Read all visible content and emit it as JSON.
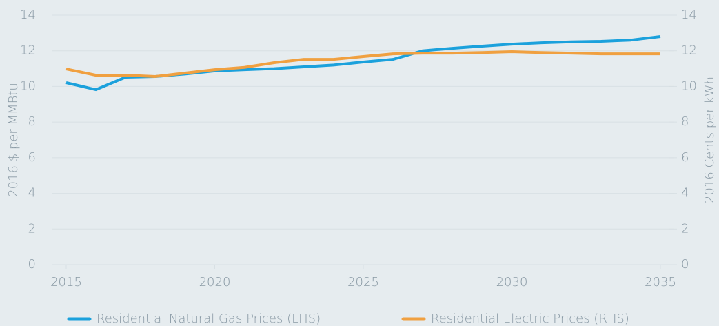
{
  "chart_data": {
    "type": "line",
    "y_label": "2016 $ per MMBtu",
    "y2_label": "2016 Cents per kWh",
    "x": [
      2015,
      2016,
      2017,
      2018,
      2019,
      2020,
      2021,
      2022,
      2023,
      2024,
      2025,
      2026,
      2027,
      2028,
      2029,
      2030,
      2031,
      2032,
      2033,
      2034,
      2035
    ],
    "xlim": [
      2015,
      2035
    ],
    "xticks": [
      2015,
      2020,
      2025,
      2030,
      2035
    ],
    "ylim": [
      0,
      14
    ],
    "yticks": [
      0,
      2,
      4,
      6,
      8,
      10,
      12,
      14
    ],
    "y2lim": [
      0,
      14
    ],
    "y2ticks": [
      0,
      2,
      4,
      6,
      8,
      10,
      12,
      14
    ],
    "grid": true,
    "legend": "bottom",
    "series": [
      {
        "name": "Residential Natural Gas Prices (LHS)",
        "color": "#1ba1dc",
        "values": [
          10.21,
          9.82,
          10.52,
          10.56,
          10.7,
          10.87,
          10.94,
          11.0,
          11.1,
          11.2,
          11.37,
          11.52,
          12.0,
          12.14,
          12.26,
          12.37,
          12.45,
          12.5,
          12.53,
          12.6,
          12.8
        ]
      },
      {
        "name": "Residential Electric Prices (RHS)",
        "color": "#f0a040",
        "axis": "y2",
        "values": [
          10.98,
          10.63,
          10.63,
          10.56,
          10.75,
          10.94,
          11.07,
          11.33,
          11.52,
          11.52,
          11.68,
          11.83,
          11.87,
          11.87,
          11.9,
          11.95,
          11.9,
          11.87,
          11.83,
          11.83,
          11.83
        ]
      }
    ]
  }
}
